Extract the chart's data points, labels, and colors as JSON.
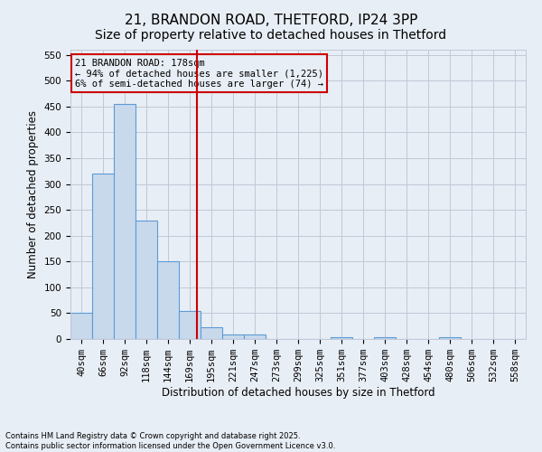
{
  "title1": "21, BRANDON ROAD, THETFORD, IP24 3PP",
  "title2": "Size of property relative to detached houses in Thetford",
  "xlabel": "Distribution of detached houses by size in Thetford",
  "ylabel": "Number of detached properties",
  "footnote1": "Contains HM Land Registry data © Crown copyright and database right 2025.",
  "footnote2": "Contains public sector information licensed under the Open Government Licence v3.0.",
  "bin_labels": [
    "40sqm",
    "66sqm",
    "92sqm",
    "118sqm",
    "144sqm",
    "169sqm",
    "195sqm",
    "221sqm",
    "247sqm",
    "273sqm",
    "299sqm",
    "325sqm",
    "351sqm",
    "377sqm",
    "403sqm",
    "428sqm",
    "454sqm",
    "480sqm",
    "506sqm",
    "532sqm",
    "558sqm"
  ],
  "bar_values": [
    50,
    320,
    455,
    230,
    150,
    55,
    22,
    9,
    8,
    0,
    0,
    0,
    4,
    0,
    4,
    0,
    0,
    4,
    0,
    0,
    0
  ],
  "bar_color": "#c9d9ec",
  "bar_edgecolor": "#5b9bd5",
  "grid_color": "#c0c8d8",
  "background_color": "#e8eef5",
  "vline_color": "#cc0000",
  "annotation_line1": "21 BRANDON ROAD: 178sqm",
  "annotation_line2": "← 94% of detached houses are smaller (1,225)",
  "annotation_line3": "6% of semi-detached houses are larger (74) →",
  "annotation_box_color": "#cc0000",
  "ylim": [
    0,
    560
  ],
  "yticks": [
    0,
    50,
    100,
    150,
    200,
    250,
    300,
    350,
    400,
    450,
    500,
    550
  ],
  "title_fontsize": 11,
  "subtitle_fontsize": 10,
  "axis_label_fontsize": 8.5,
  "tick_fontsize": 7.5,
  "annotation_fontsize": 7.5
}
